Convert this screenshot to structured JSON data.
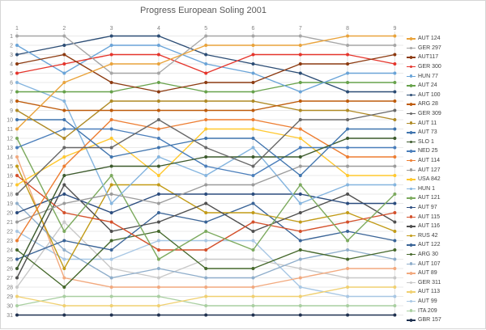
{
  "title": "Progress European Soling 2001",
  "axes": {
    "x_labels": [
      "1",
      "2",
      "3",
      "4",
      "5",
      "6",
      "7",
      "8",
      "9"
    ],
    "y_labels": [
      "1",
      "2",
      "3",
      "4",
      "5",
      "6",
      "7",
      "8",
      "9",
      "10",
      "11",
      "12",
      "13",
      "14",
      "15",
      "16",
      "17",
      "18",
      "19",
      "20",
      "21",
      "22",
      "23",
      "24",
      "25",
      "26",
      "27",
      "28",
      "29",
      "30",
      "31"
    ]
  },
  "chart_data": {
    "type": "line",
    "title": "Progress European Soling 2001",
    "x": [
      1,
      2,
      3,
      4,
      5,
      6,
      7,
      8,
      9
    ],
    "ylim": [
      1,
      31
    ],
    "y_inverted": true,
    "grid": "both",
    "legend_position": "right",
    "series": [
      {
        "name": "AUT 124",
        "color": "#E9A33B",
        "ranks": [
          11,
          6,
          4,
          4,
          2,
          2,
          2,
          1,
          1
        ]
      },
      {
        "name": "GER 297",
        "color": "#A6A6A6",
        "ranks": [
          1,
          1,
          5,
          5,
          1,
          1,
          1,
          2,
          2
        ]
      },
      {
        "name": "AUT117",
        "color": "#8C3A10",
        "ranks": [
          4,
          3,
          6,
          7,
          6,
          6,
          4,
          4,
          3
        ]
      },
      {
        "name": "GER 300",
        "color": "#E5352C",
        "ranks": [
          5,
          4,
          3,
          3,
          5,
          3,
          3,
          3,
          4
        ]
      },
      {
        "name": "HUN 77",
        "color": "#6AA4D8",
        "ranks": [
          2,
          5,
          2,
          2,
          4,
          5,
          7,
          5,
          5
        ]
      },
      {
        "name": "AUT 24",
        "color": "#67A24B",
        "ranks": [
          7,
          7,
          7,
          6,
          7,
          7,
          6,
          6,
          6
        ]
      },
      {
        "name": "AUT 100",
        "color": "#2C4D75",
        "ranks": [
          3,
          2,
          1,
          1,
          3,
          4,
          5,
          7,
          7
        ]
      },
      {
        "name": "ARG 28",
        "color": "#BE5B0B",
        "ranks": [
          8,
          9,
          9,
          9,
          9,
          9,
          8,
          8,
          8
        ]
      },
      {
        "name": "GER 309",
        "color": "#686868",
        "ranks": [
          18,
          13,
          13,
          10,
          13,
          15,
          10,
          10,
          9
        ]
      },
      {
        "name": "AUT 11",
        "color": "#AF8A25",
        "ranks": [
          9,
          12,
          8,
          8,
          8,
          8,
          9,
          9,
          10
        ]
      },
      {
        "name": "AUT 73",
        "color": "#3F74AE",
        "ranks": [
          10,
          10,
          14,
          13,
          12,
          12,
          16,
          11,
          11
        ]
      },
      {
        "name": "SLO 1",
        "color": "#3C5A2C",
        "ranks": [
          26,
          16,
          15,
          15,
          14,
          14,
          14,
          12,
          12
        ]
      },
      {
        "name": "NED 25",
        "color": "#4A7EBB",
        "ranks": [
          13,
          11,
          11,
          12,
          15,
          16,
          13,
          13,
          13
        ]
      },
      {
        "name": "AUT 114",
        "color": "#ED7D31",
        "ranks": [
          23,
          15,
          10,
          11,
          10,
          10,
          11,
          14,
          14
        ]
      },
      {
        "name": "AUT 127",
        "color": "#9B9B9B",
        "ranks": [
          21,
          19,
          18,
          19,
          17,
          17,
          15,
          15,
          15
        ]
      },
      {
        "name": "USA 842",
        "color": "#FFC82E",
        "ranks": [
          17,
          14,
          12,
          16,
          11,
          11,
          12,
          16,
          16
        ]
      },
      {
        "name": "HUN 1",
        "color": "#85B5DF",
        "ranks": [
          6,
          8,
          19,
          14,
          16,
          13,
          19,
          17,
          17
        ]
      },
      {
        "name": "AUT 121",
        "color": "#7CAA5E",
        "ranks": [
          12,
          22,
          16,
          25,
          22,
          24,
          17,
          23,
          18
        ]
      },
      {
        "name": "AUT 97",
        "color": "#2B4C7E",
        "ranks": [
          20,
          18,
          20,
          18,
          18,
          18,
          18,
          19,
          19
        ]
      },
      {
        "name": "AUT 115",
        "color": "#D4502B",
        "ranks": [
          16,
          20,
          21,
          24,
          24,
          21,
          22,
          21,
          20
        ]
      },
      {
        "name": "AUT 116",
        "color": "#4F4F4F",
        "ranks": [
          27,
          17,
          22,
          21,
          19,
          22,
          20,
          18,
          21
        ]
      },
      {
        "name": "RUS 42",
        "color": "#C29B17",
        "ranks": [
          15,
          26,
          17,
          17,
          20,
          20,
          21,
          20,
          22
        ]
      },
      {
        "name": "AUT 122",
        "color": "#3A6497",
        "ranks": [
          25,
          23,
          24,
          20,
          21,
          19,
          23,
          22,
          23
        ]
      },
      {
        "name": "ARG 30",
        "color": "#45682B",
        "ranks": [
          24,
          28,
          23,
          22,
          26,
          26,
          24,
          25,
          24
        ]
      },
      {
        "name": "AUT 107",
        "color": "#8FAECB",
        "ranks": [
          19,
          24,
          27,
          26,
          27,
          27,
          25,
          24,
          25
        ]
      },
      {
        "name": "AUT 89",
        "color": "#F2A97E",
        "ranks": [
          14,
          27,
          28,
          28,
          28,
          28,
          27,
          26,
          26
        ]
      },
      {
        "name": "GER 311",
        "color": "#C8C8C8",
        "ranks": [
          28,
          21,
          26,
          27,
          25,
          25,
          26,
          27,
          27
        ]
      },
      {
        "name": "AUT 113",
        "color": "#F0D070",
        "ranks": [
          29,
          30,
          30,
          30,
          29,
          29,
          29,
          28,
          28
        ]
      },
      {
        "name": "AUT 99",
        "color": "#A8C7E4",
        "ranks": [
          22,
          25,
          25,
          23,
          23,
          23,
          28,
          29,
          29
        ]
      },
      {
        "name": "ITA 209",
        "color": "#A9CFA1",
        "ranks": [
          30,
          29,
          29,
          29,
          30,
          30,
          30,
          30,
          30
        ]
      },
      {
        "name": "GBR 157",
        "color": "#1F3150",
        "ranks": [
          31,
          31,
          31,
          31,
          31,
          31,
          31,
          31,
          31
        ]
      }
    ]
  },
  "colors": {
    "title_text": "#595959",
    "axis_text": "#7F7F7F",
    "gridline": "#E9E9E9",
    "vertical_gridline": "#E0E0E0",
    "frame_border": "#D6D6D6",
    "legend_text": "#404040"
  }
}
